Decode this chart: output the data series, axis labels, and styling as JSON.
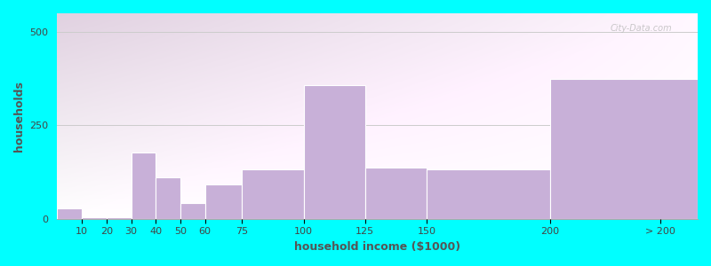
{
  "xlabel": "household income ($1000)",
  "ylabel": "households",
  "background_color": "#00FFFF",
  "bar_color": "#c8b0d8",
  "categories": [
    "10",
    "20",
    "30",
    "40",
    "50",
    "60",
    "75",
    "100",
    "125",
    "150",
    "200",
    "> 200"
  ],
  "left_edges": [
    0,
    10,
    20,
    30,
    40,
    50,
    60,
    75,
    100,
    125,
    150,
    200
  ],
  "right_edges": [
    10,
    20,
    30,
    40,
    50,
    60,
    75,
    100,
    125,
    150,
    200,
    260
  ],
  "values": [
    28,
    4,
    4,
    178,
    112,
    42,
    92,
    132,
    358,
    138,
    132,
    375
  ],
  "ylim": [
    0,
    550
  ],
  "yticks": [
    0,
    250,
    500
  ],
  "tick_positions": [
    10,
    20,
    30,
    40,
    50,
    60,
    75,
    100,
    125,
    150,
    200,
    245
  ],
  "tick_labels": [
    "10",
    "20",
    "30",
    "40",
    "50",
    "60",
    "75",
    "100",
    "125",
    "150",
    "200",
    "> 200"
  ],
  "xlim": [
    0,
    260
  ],
  "grid_color": "#cccccc",
  "watermark": "City-Data.com",
  "title_fontsize": 12,
  "subtitle_fontsize": 10,
  "axis_label_fontsize": 9,
  "tick_label_fontsize": 8,
  "title_color": "#222222",
  "subtitle_color": "#2288aa",
  "ylabel_color": "#555555",
  "xlabel_color": "#555555"
}
